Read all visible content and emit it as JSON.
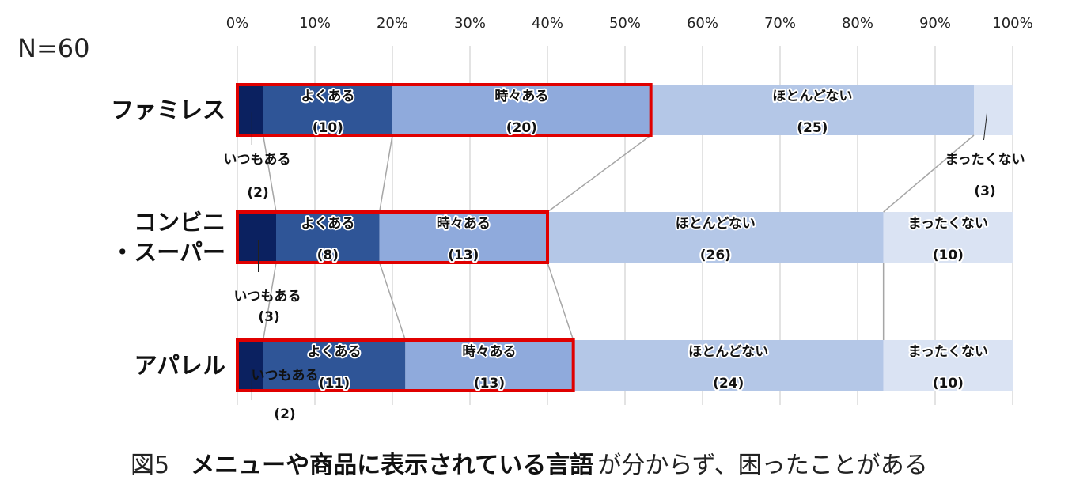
{
  "chart_data": {
    "type": "bar",
    "orientation": "horizontal",
    "stacked": "percent",
    "sample_size_label": "N=60",
    "x_ticks": [
      "0%",
      "10%",
      "20%",
      "30%",
      "40%",
      "50%",
      "60%",
      "70%",
      "80%",
      "90%",
      "100%"
    ],
    "xlim": [
      0,
      100
    ],
    "grid": true,
    "total": 60,
    "categories": [
      {
        "lines": [
          "ファミレス"
        ]
      },
      {
        "lines": [
          "コンビニ",
          "・スーパー"
        ]
      },
      {
        "lines": [
          "アパレル"
        ]
      }
    ],
    "series": [
      {
        "name": "いつもある",
        "color": "#0b2160",
        "values": [
          2,
          3,
          2
        ]
      },
      {
        "name": "よくある",
        "color": "#2f5597",
        "values": [
          10,
          8,
          11
        ]
      },
      {
        "name": "時々ある",
        "color": "#8faadc",
        "values": [
          20,
          13,
          13
        ]
      },
      {
        "name": "ほとんどない",
        "color": "#b4c7e7",
        "values": [
          25,
          26,
          24
        ]
      },
      {
        "name": "まったくない",
        "color": "#dae3f3",
        "values": [
          3,
          10,
          10
        ]
      }
    ],
    "value_labels": [
      [
        "(2)",
        "(10)",
        "(20)",
        "(25)",
        "(3)"
      ],
      [
        "(3)",
        "(8)",
        "(13)",
        "(26)",
        "(10)"
      ],
      [
        "(2)",
        "(11)",
        "(13)",
        "(24)",
        "(10)"
      ]
    ],
    "highlight_box_color": "#e00000",
    "caption": {
      "number": "図5",
      "bold": "メニューや商品に表示されている言語",
      "normal": "が分からず、困ったことがある"
    }
  }
}
